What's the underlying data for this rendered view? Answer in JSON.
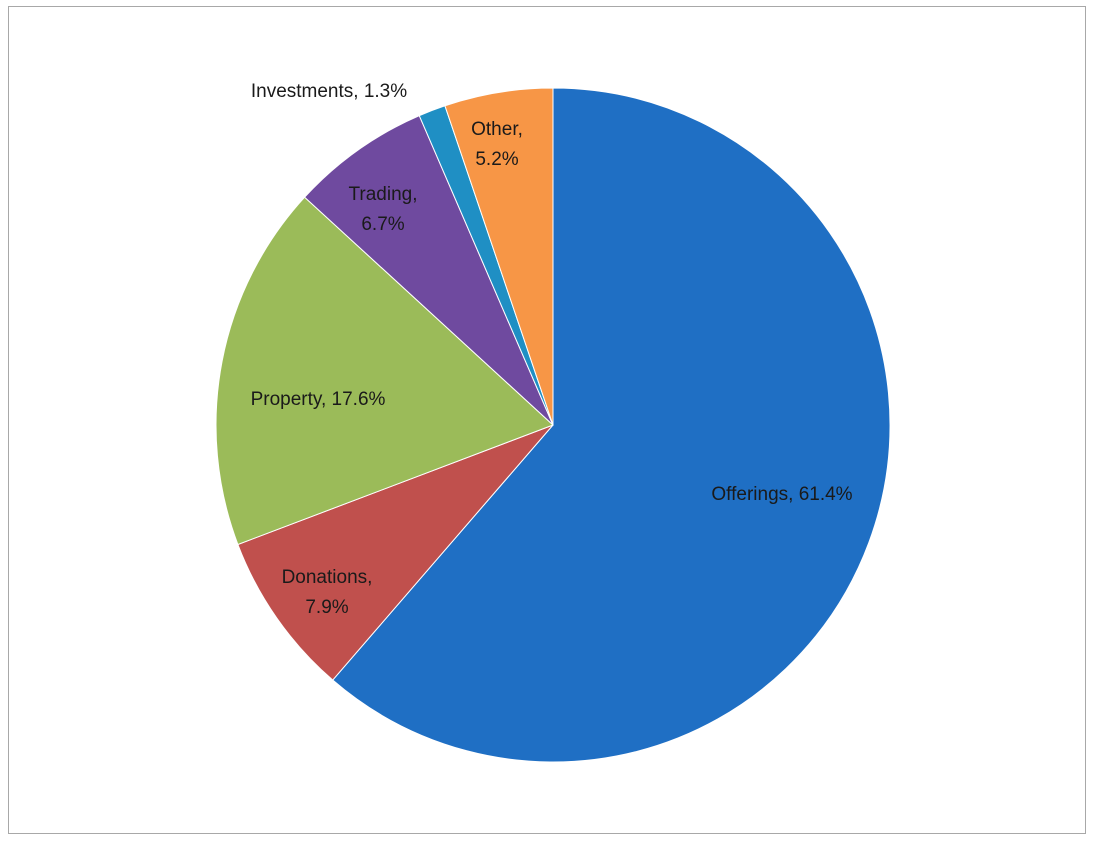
{
  "chart_data": {
    "type": "pie",
    "title": "",
    "categories": [
      "Offerings",
      "Donations",
      "Property",
      "Trading",
      "Investments",
      "Other"
    ],
    "values": [
      61.4,
      7.9,
      17.6,
      6.7,
      1.3,
      5.2
    ],
    "unit": "%",
    "colors": [
      "#1f6fc4",
      "#c0504d",
      "#9bbb59",
      "#6f4a9f",
      "#1f8fc4",
      "#f79646"
    ],
    "slices": [
      {
        "name": "Offerings",
        "value": 61.4,
        "label_line1": "Offerings, 61.4%",
        "label_line2": ""
      },
      {
        "name": "Donations",
        "value": 7.9,
        "label_line1": "Donations,",
        "label_line2": "7.9%"
      },
      {
        "name": "Property",
        "value": 17.6,
        "label_line1": "Property, 17.6%",
        "label_line2": ""
      },
      {
        "name": "Trading",
        "value": 6.7,
        "label_line1": "Trading,",
        "label_line2": "6.7%"
      },
      {
        "name": "Investments",
        "value": 1.3,
        "label_line1": "Investments, 1.3%",
        "label_line2": ""
      },
      {
        "name": "Other",
        "value": 5.2,
        "label_line1": "Other,",
        "label_line2": "5.2%"
      }
    ],
    "legend": "none"
  }
}
